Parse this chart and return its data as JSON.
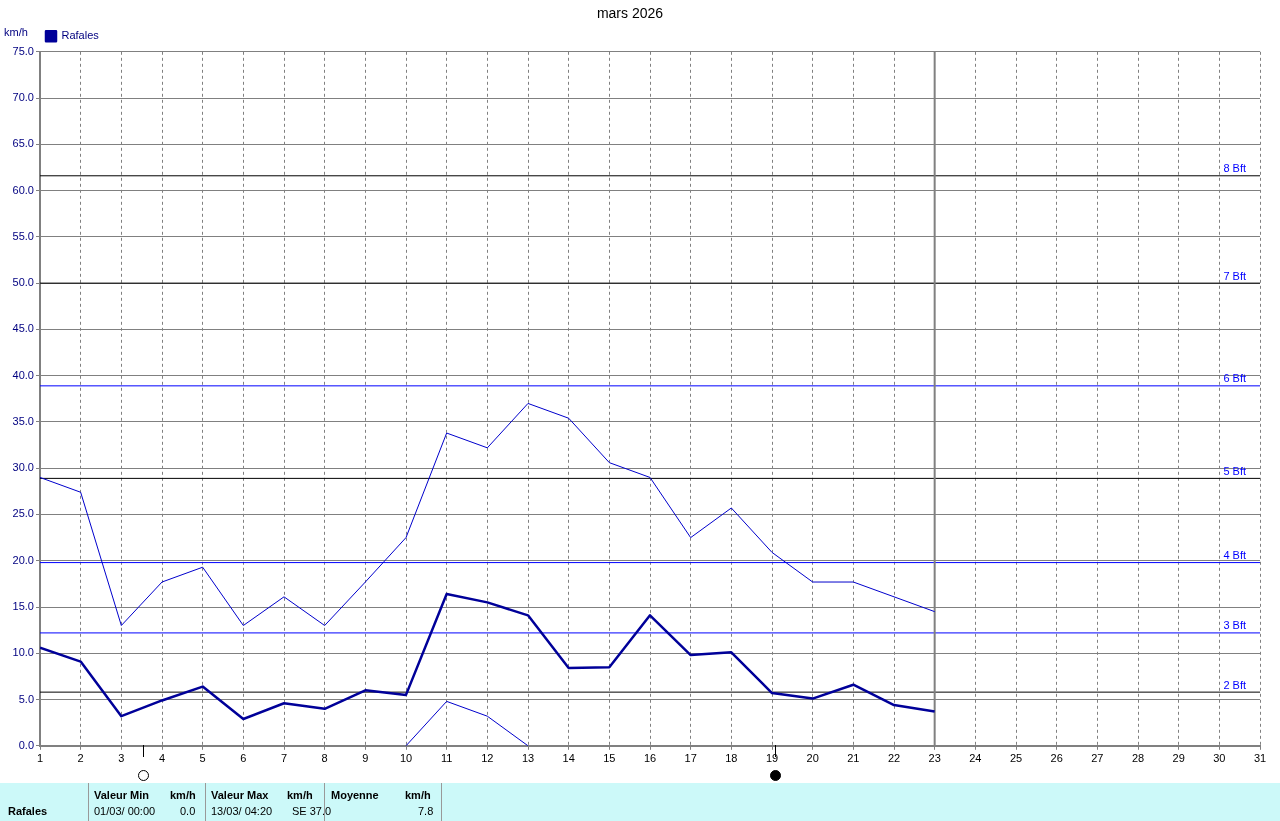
{
  "chart_data": {
    "type": "line",
    "title": "mars 2026",
    "ylabel": "km/h",
    "legend": "top left",
    "grid": true,
    "line_style": "solid",
    "marker": "none",
    "xlim": [
      1,
      31
    ],
    "xticks": [
      1,
      2,
      3,
      4,
      5,
      6,
      7,
      8,
      9,
      10,
      11,
      12,
      13,
      14,
      15,
      16,
      17,
      18,
      19,
      20,
      21,
      22,
      23,
      24,
      25,
      26,
      27,
      28,
      29,
      30,
      31
    ],
    "ylim": [
      0,
      75
    ],
    "yticks": [
      {
        "value": 0,
        "label": "0.0"
      },
      {
        "value": 5,
        "label": "5.0"
      },
      {
        "value": 10,
        "label": "10.0"
      },
      {
        "value": 15,
        "label": "15.0"
      },
      {
        "value": 20,
        "label": "20.0"
      },
      {
        "value": 25,
        "label": "25.0"
      },
      {
        "value": 30,
        "label": "30.0"
      },
      {
        "value": 35,
        "label": "35.0"
      },
      {
        "value": 40,
        "label": "40.0"
      },
      {
        "value": 45,
        "label": "45.0"
      },
      {
        "value": 50,
        "label": "50.0"
      },
      {
        "value": 55,
        "label": "55.0"
      },
      {
        "value": 60,
        "label": "60.0"
      },
      {
        "value": 65,
        "label": "65.0"
      },
      {
        "value": 70,
        "label": "70.0"
      },
      {
        "value": 75,
        "label": "75.0"
      }
    ],
    "x": [
      1,
      2,
      3,
      4,
      5,
      6,
      7,
      8,
      9,
      10,
      11,
      12,
      13,
      14,
      15,
      16,
      17,
      18,
      19,
      20,
      21,
      22,
      23
    ],
    "series": [
      {
        "color": "#0000cc",
        "values": [
          29.0,
          27.4,
          13.0,
          17.7,
          19.3,
          13.0,
          16.1,
          13.0,
          17.7,
          22.5,
          33.8,
          32.2,
          37.0,
          35.4,
          30.6,
          29.0,
          22.5,
          25.7,
          20.9,
          17.7,
          17.7,
          16.1,
          14.5
        ]
      },
      {
        "name": "Rafales",
        "color": "#000099",
        "values": [
          10.6,
          9.1,
          3.2,
          4.9,
          6.4,
          2.9,
          4.6,
          4.0,
          6.0,
          5.5,
          16.4,
          15.5,
          14.1,
          8.4,
          8.5,
          14.1,
          9.8,
          10.1,
          5.7,
          5.1,
          6.6,
          4.4,
          3.7
        ]
      },
      {
        "color": "#0000cc",
        "values": [
          null,
          null,
          null,
          null,
          null,
          null,
          null,
          null,
          null,
          0,
          4.8,
          3.2,
          0,
          null,
          null,
          null,
          null,
          null,
          null,
          null,
          null,
          null,
          null
        ]
      }
    ],
    "ref_lines": [
      {
        "axis": "y",
        "value": 5.8,
        "label": "2 Bft",
        "color": "#000000"
      },
      {
        "axis": "y",
        "value": 12.2,
        "label": "3 Bft",
        "color": "#0000ff"
      },
      {
        "axis": "y",
        "value": 19.8,
        "label": "4 Bft",
        "color": "#0000ff"
      },
      {
        "axis": "y",
        "value": 28.9,
        "label": "5 Bft",
        "color": "#000000"
      },
      {
        "axis": "y",
        "value": 38.9,
        "label": "6 Bft",
        "color": "#0000ff"
      },
      {
        "axis": "y",
        "value": 50.0,
        "label": "7 Bft",
        "color": "#000000"
      },
      {
        "axis": "y",
        "value": 61.6,
        "label": "8 Bft",
        "color": "#000000"
      },
      {
        "axis": "x",
        "value": 23,
        "color": "#808080"
      }
    ],
    "annotations": [
      "Rafales",
      "Valeur Min",
      "km/h",
      "01/03/  00:00",
      "0.0",
      "Valeur Max",
      "km/h",
      "13/03/  04:20",
      "SE 37.0",
      "Moyenne",
      "km/h",
      "7.8"
    ]
  }
}
